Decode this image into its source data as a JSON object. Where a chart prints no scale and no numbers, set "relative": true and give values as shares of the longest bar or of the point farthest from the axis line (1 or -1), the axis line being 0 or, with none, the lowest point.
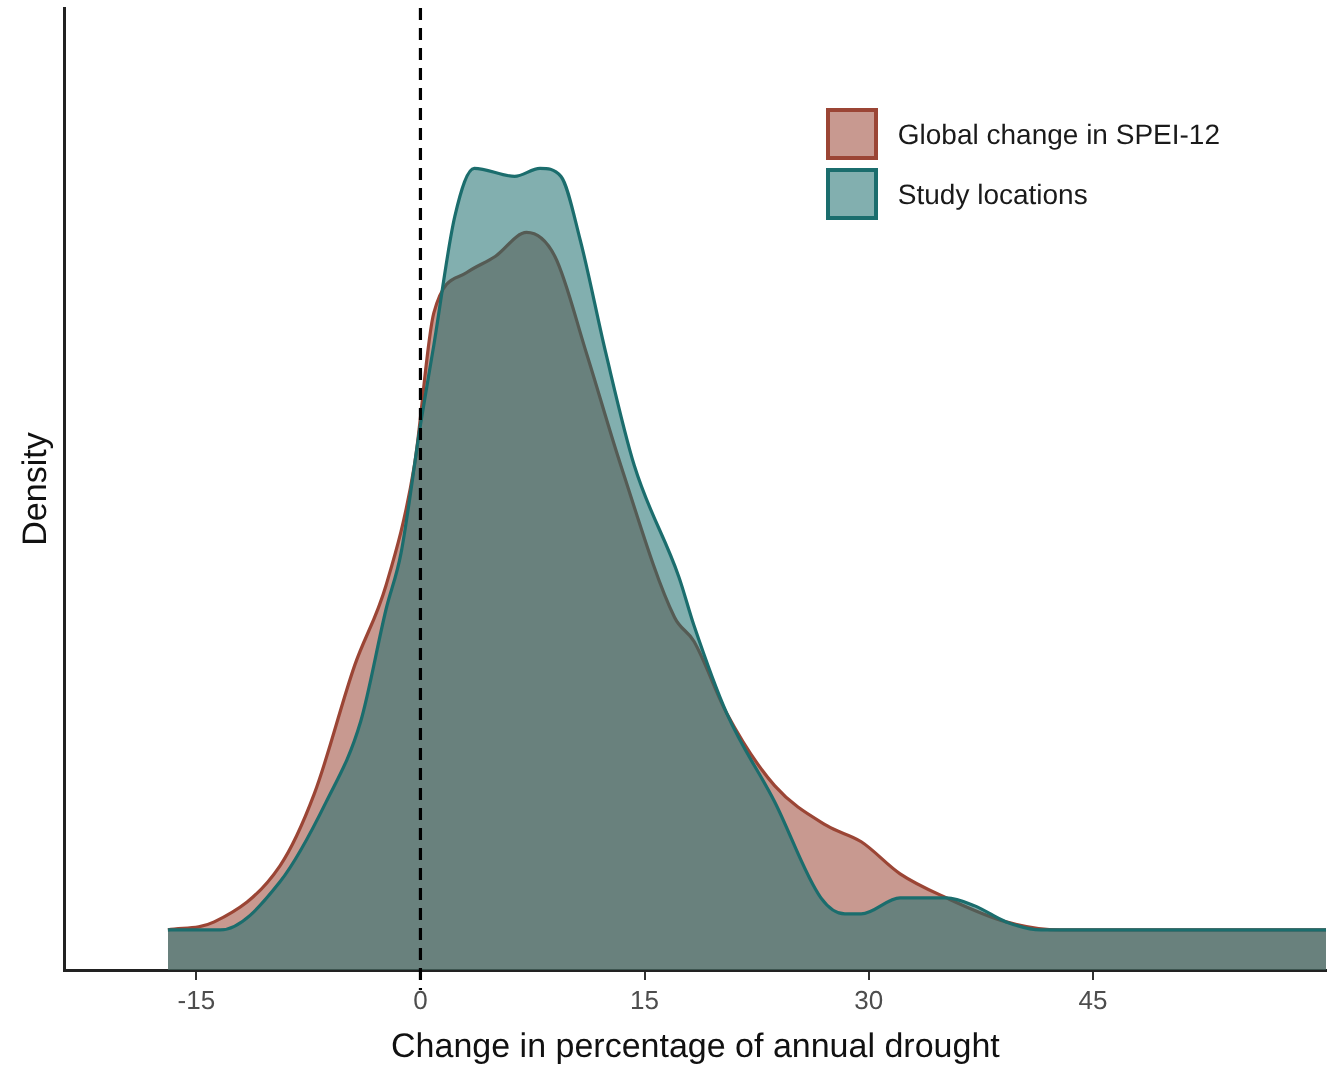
{
  "chart_data": {
    "type": "area",
    "xlabel": "Change in percentage of annual drought",
    "ylabel": "Density",
    "relative": true,
    "xlim": [
      -23.8,
      60.6
    ],
    "xticks": [
      -15,
      0,
      15,
      30,
      45
    ],
    "grid": false,
    "legend": "top right",
    "ref_lines": [
      {
        "axis": "x",
        "value": 0,
        "color": "#000000",
        "line_style": "dashed"
      }
    ],
    "series": [
      {
        "name": "Global change in SPEI-12",
        "color": "#9b4535",
        "x": [
          -16.9,
          -13.8,
          -9.4,
          -7.1,
          -4.4,
          -2.3,
          -0.4,
          0.9,
          3.1,
          5.0,
          7.1,
          9.0,
          11.1,
          13.4,
          17.0,
          18.3,
          20.5,
          23.7,
          27.2,
          29.5,
          32.1,
          35.2,
          39.2,
          42.8,
          47.3,
          60.6
        ],
        "values": [
          0.05,
          0.06,
          0.13,
          0.22,
          0.38,
          0.48,
          0.63,
          0.82,
          0.87,
          0.89,
          0.92,
          0.89,
          0.77,
          0.63,
          0.44,
          0.41,
          0.32,
          0.23,
          0.18,
          0.16,
          0.12,
          0.09,
          0.06,
          0.05,
          0.05,
          0.05
        ]
      },
      {
        "name": "Study locations",
        "color": "#1b6d6d",
        "x": [
          -16.9,
          -14.7,
          -13.4,
          -9.4,
          -6.3,
          -4.0,
          -2.3,
          -1.3,
          0.0,
          0.9,
          2.3,
          3.6,
          6.3,
          8.0,
          9.4,
          10.7,
          12.4,
          14.3,
          17.3,
          18.3,
          20.5,
          23.7,
          26.8,
          28.4,
          29.5,
          32.1,
          35.2,
          37.1,
          39.2,
          41.5,
          60.6
        ],
        "values": [
          0.05,
          0.05,
          0.05,
          0.11,
          0.21,
          0.31,
          0.45,
          0.52,
          0.68,
          0.78,
          0.94,
          1.0,
          0.99,
          1.0,
          0.99,
          0.91,
          0.77,
          0.63,
          0.49,
          0.43,
          0.32,
          0.21,
          0.09,
          0.07,
          0.07,
          0.09,
          0.09,
          0.08,
          0.06,
          0.05,
          0.05
        ]
      }
    ]
  }
}
